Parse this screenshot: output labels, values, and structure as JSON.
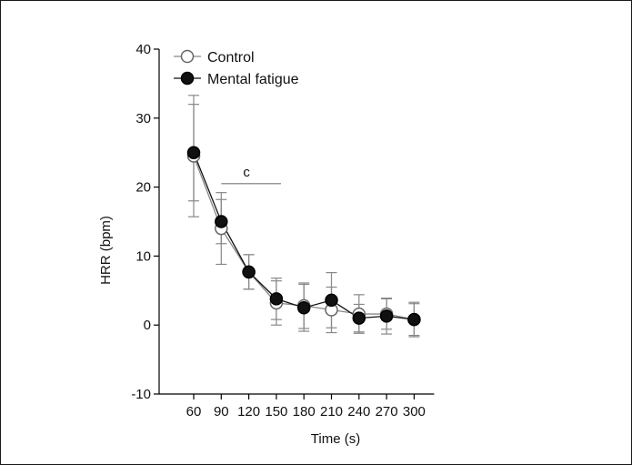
{
  "chart_data": {
    "type": "line",
    "xlabel": "Time (s)",
    "ylabel": "HRR (bpm)",
    "x": [
      60,
      90,
      120,
      150,
      180,
      210,
      240,
      270,
      300
    ],
    "x_tick_labels": [
      "60",
      "90",
      "120",
      "150",
      "180",
      "210",
      "240",
      "270",
      "300"
    ],
    "ylim": [
      -10,
      40
    ],
    "y_ticks": [
      -10,
      0,
      10,
      20,
      30,
      40
    ],
    "y_tick_labels": [
      "-10",
      "0",
      "10",
      "20",
      "30",
      "40"
    ],
    "grid": false,
    "legend_position": "top-left",
    "series": [
      {
        "name": "Control",
        "marker": "open-circle",
        "color": "#888888",
        "values": [
          24.5,
          14.0,
          7.7,
          3.2,
          2.8,
          2.2,
          1.6,
          1.6,
          0.8
        ],
        "error": [
          8.8,
          5.2,
          2.5,
          3.2,
          3.3,
          3.3,
          2.8,
          2.2,
          2.3
        ]
      },
      {
        "name": "Mental fatigue",
        "marker": "filled-circle",
        "color": "#111111",
        "values": [
          25.0,
          15.0,
          7.7,
          3.8,
          2.5,
          3.6,
          1.0,
          1.3,
          0.8
        ],
        "error": [
          7.0,
          3.2,
          2.5,
          3.0,
          3.4,
          4.0,
          2.0,
          2.6,
          2.5
        ]
      }
    ],
    "annotations": [
      {
        "text": "c",
        "x_start": 90,
        "x_end": 155,
        "y": 20.5
      }
    ]
  }
}
